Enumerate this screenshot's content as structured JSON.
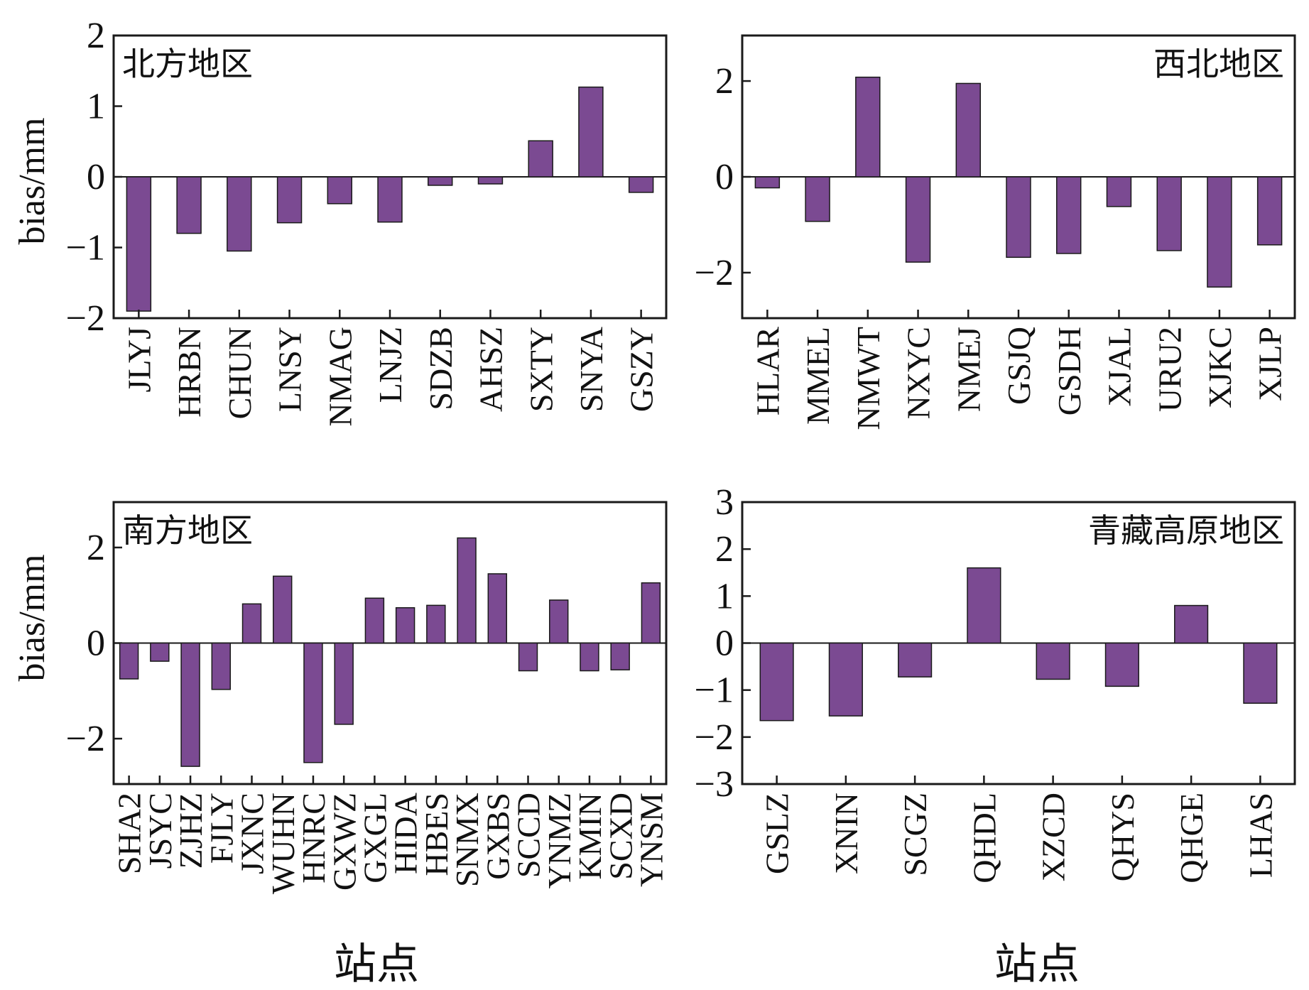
{
  "chart_data": [
    {
      "type": "bar",
      "title": "北方地区",
      "ylabel": "bias/mm",
      "xlabel": "",
      "ylim": [
        -2,
        2
      ],
      "yticks": [
        "2",
        "1",
        "0",
        "−1",
        "−2"
      ],
      "yticks_values": [
        2,
        1,
        0,
        -1,
        -2
      ],
      "categories": [
        "JLYJ",
        "HRBN",
        "CHUN",
        "LNSY",
        "NMAG",
        "LNJZ",
        "SDZB",
        "AHSZ",
        "SXTY",
        "SNYA",
        "GSZY"
      ],
      "values": [
        -1.9,
        -0.8,
        -1.05,
        -0.65,
        -0.38,
        -0.64,
        -0.12,
        -0.1,
        0.51,
        1.27,
        -0.22
      ]
    },
    {
      "type": "bar",
      "title": "西北地区",
      "ylabel": "",
      "xlabel": "",
      "ylim": [
        -2.95,
        2.95
      ],
      "yticks": [
        "2",
        "0",
        "−2"
      ],
      "yticks_values": [
        2,
        0,
        -2
      ],
      "categories": [
        "HLAR",
        "MMEL",
        "NMWT",
        "NXYC",
        "NMEJ",
        "GSJQ",
        "GSDH",
        "XJAL",
        "URU2",
        "XJKC",
        "XJLP"
      ],
      "values": [
        -0.23,
        -0.93,
        2.08,
        -1.78,
        1.95,
        -1.68,
        -1.6,
        -0.62,
        -1.54,
        -2.3,
        -1.42
      ]
    },
    {
      "type": "bar",
      "title": "南方地区",
      "ylabel": "bias/mm",
      "xlabel": "站点",
      "ylim": [
        -2.95,
        2.95
      ],
      "yticks": [
        "2",
        "0",
        "−2"
      ],
      "yticks_values": [
        2,
        0,
        -2
      ],
      "categories": [
        "SHA2",
        "JSYC",
        "ZJHZ",
        "FJLY",
        "JXNC",
        "WUHN",
        "HNRC",
        "GXWZ",
        "GXGL",
        "HIDA",
        "HBES",
        "SNMX",
        "GXBS",
        "SCCD",
        "YNMZ",
        "KMIN",
        "SCXD",
        "YNSM"
      ],
      "values": [
        -0.75,
        -0.38,
        -2.58,
        -0.97,
        0.82,
        1.4,
        -2.5,
        -1.7,
        0.94,
        0.74,
        0.79,
        2.2,
        1.45,
        -0.58,
        0.9,
        -0.58,
        -0.56,
        1.26
      ]
    },
    {
      "type": "bar",
      "title": "青藏高原地区",
      "ylabel": "",
      "xlabel": "站点",
      "ylim": [
        -3,
        3
      ],
      "yticks": [
        "3",
        "2",
        "1",
        "0",
        "−1",
        "−2",
        "−3"
      ],
      "yticks_values": [
        3,
        2,
        1,
        0,
        -1,
        -2,
        -3
      ],
      "categories": [
        "GSLZ",
        "XNIN",
        "SCGZ",
        "QHDL",
        "XZCD",
        "QHYS",
        "QHGE",
        "LHAS"
      ],
      "values": [
        -1.65,
        -1.55,
        -0.72,
        1.6,
        -0.77,
        -0.92,
        0.8,
        -1.28
      ]
    }
  ],
  "colors": {
    "bar": "#7b4a92",
    "bar_edge": "#1a1a1a",
    "axis": "#1a1a1a"
  }
}
